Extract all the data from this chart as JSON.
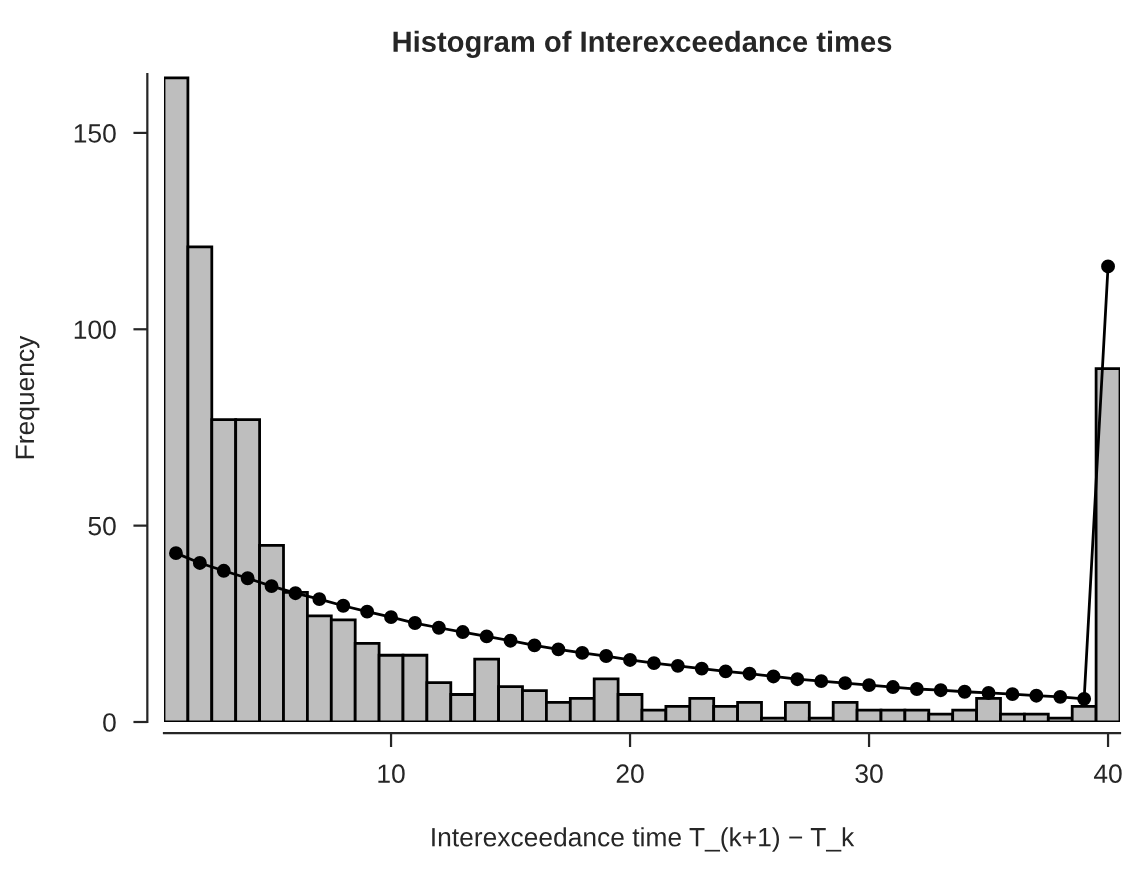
{
  "chart_data": {
    "type": "histogram",
    "title": "Histogram of Interexceedance times",
    "xlabel": "Interexceedance time T_(k+1) − T_k",
    "ylabel": "Frequency",
    "bins": [
      0.5,
      1.5,
      2.5,
      3.5,
      4.5,
      5.5,
      6.5,
      7.5,
      8.5,
      9.5,
      10.5,
      11.5,
      12.5,
      13.5,
      14.5,
      15.5,
      16.5,
      17.5,
      18.5,
      19.5,
      20.5,
      21.5,
      22.5,
      23.5,
      24.5,
      25.5,
      26.5,
      27.5,
      28.5,
      29.5,
      30.5,
      31.5,
      32.5,
      33.5,
      34.5,
      35.5,
      36.5,
      37.5,
      38.5,
      39.5,
      40.5
    ],
    "values": [
      164,
      121,
      77,
      77,
      45,
      33,
      27,
      26,
      20,
      17,
      17,
      10,
      7,
      16,
      9,
      8,
      5,
      6,
      11,
      7,
      3,
      4,
      6,
      4,
      5,
      1,
      5,
      1,
      5,
      3,
      3,
      3,
      2,
      3,
      6,
      2,
      2,
      1,
      4,
      90
    ],
    "color": "#bebebe",
    "series": [
      {
        "type": "line",
        "color": "#000000",
        "marker": "circle",
        "x": [
          1,
          2,
          3,
          4,
          5,
          6,
          7,
          8,
          9,
          10,
          11,
          12,
          13,
          14,
          15,
          16,
          17,
          18,
          19,
          20,
          21,
          22,
          23,
          24,
          25,
          26,
          27,
          28,
          29,
          30,
          31,
          32,
          33,
          34,
          35,
          36,
          37,
          38,
          39,
          40
        ],
        "values": [
          43,
          40.5,
          38.5,
          36.6,
          34.6,
          32.8,
          31.3,
          29.6,
          28.1,
          26.7,
          25.2,
          24,
          22.9,
          21.8,
          20.7,
          19.5,
          18.5,
          17.6,
          16.8,
          15.8,
          15,
          14.3,
          13.6,
          12.9,
          12.3,
          11.6,
          10.9,
          10.4,
          9.9,
          9.4,
          8.9,
          8.4,
          8.1,
          7.7,
          7.4,
          7.1,
          6.7,
          6.4,
          5.9,
          116
        ]
      }
    ],
    "xlim": [
      0.5,
      40.5
    ],
    "ylim": [
      0,
      165
    ],
    "xticks": [
      10,
      20,
      30,
      40
    ],
    "yticks": [
      0,
      50,
      100,
      150
    ],
    "grid": false,
    "legend": false
  }
}
